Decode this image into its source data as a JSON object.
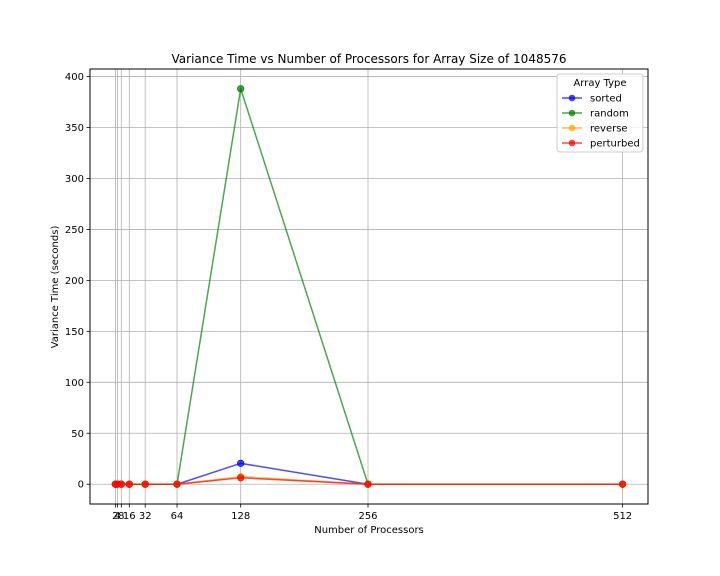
{
  "chart_data": {
    "type": "line",
    "title": "Variance Time vs Number of Processors for Array Size of 1048576",
    "xlabel": "Number of Processors",
    "ylabel": "Variance Time (seconds)",
    "x": [
      2,
      4,
      8,
      16,
      32,
      64,
      128,
      256,
      512
    ],
    "x_ticks": [
      2,
      4,
      8,
      16,
      32,
      64,
      128,
      256,
      512
    ],
    "x_tick_labels": [
      "2",
      "4",
      "8",
      "16",
      "32",
      "64",
      "128",
      "256",
      "512"
    ],
    "xlim": [
      -23.5,
      537.5
    ],
    "ylim": [
      -19.4,
      407.4
    ],
    "y_ticks": [
      0,
      50,
      100,
      150,
      200,
      250,
      300,
      350,
      400
    ],
    "grid": true,
    "legend": {
      "title": "Array Type",
      "placement": "top-right"
    },
    "series": [
      {
        "name": "sorted",
        "color": "#0000ff",
        "values": [
          0,
          0,
          0,
          0,
          0,
          0,
          20.5,
          0,
          0
        ]
      },
      {
        "name": "random",
        "color": "#008000",
        "values": [
          0,
          0,
          0,
          0,
          0,
          0,
          388,
          0,
          0
        ]
      },
      {
        "name": "reverse",
        "color": "#ffa500",
        "values": [
          0,
          0,
          0,
          0,
          0,
          0,
          7.5,
          0,
          0
        ]
      },
      {
        "name": "perturbed",
        "color": "#ff0000",
        "values": [
          0,
          0,
          0,
          0,
          0,
          0,
          6.3,
          0,
          0
        ]
      }
    ]
  }
}
